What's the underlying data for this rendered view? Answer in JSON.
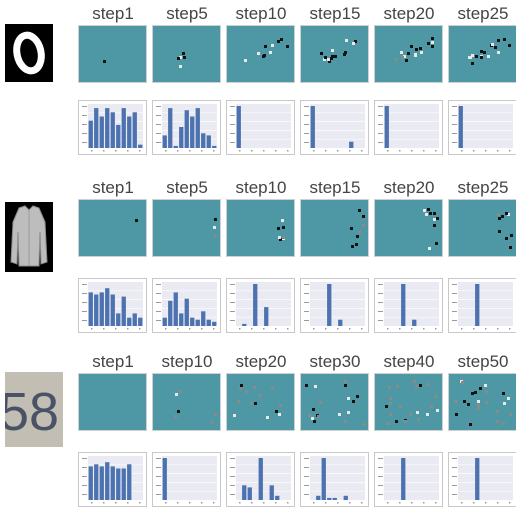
{
  "rows": [
    {
      "name": "mnist-zero",
      "steps": [
        "step1",
        "step5",
        "step10",
        "step15",
        "step20",
        "step25"
      ],
      "point_colors": {
        "dark": "#111111",
        "light": "#e8e8e8",
        "mid": "#8a8a8a"
      },
      "histograms": [
        [
          0.65,
          0.95,
          0.75,
          0.95,
          0.85,
          0.55,
          0.95,
          0.75,
          0.85,
          0.08
        ],
        [
          0.3,
          0.95,
          0.05,
          0.5,
          0.9,
          0.75,
          0.95,
          0.35,
          0.3,
          0.05
        ],
        [
          1.0,
          0,
          0,
          0,
          0,
          0,
          0,
          0,
          0,
          0
        ],
        [
          1.0,
          0,
          0,
          0,
          0,
          0,
          0,
          0.15,
          0,
          0
        ],
        [
          1.0,
          0,
          0,
          0,
          0,
          0,
          0,
          0,
          0,
          0
        ],
        [
          1.0,
          0,
          0,
          0,
          0,
          0,
          0,
          0,
          0,
          0
        ]
      ]
    },
    {
      "name": "fashion-shirt",
      "steps": [
        "step1",
        "step5",
        "step10",
        "step15",
        "step20",
        "step25"
      ],
      "point_colors": {
        "dark": "#111111",
        "light": "#e8e8e8",
        "mid": "#8a8a8a"
      },
      "histograms": [
        [
          0.8,
          0.75,
          0.8,
          0.9,
          0.75,
          0.3,
          0.7,
          0.2,
          0.3,
          0.2
        ],
        [
          0.2,
          0.6,
          0.8,
          0.3,
          0.65,
          0.2,
          0.15,
          0.35,
          0.15,
          0.1
        ],
        [
          0,
          0.05,
          0,
          1.0,
          0,
          0.45,
          0,
          0,
          0,
          0
        ],
        [
          0,
          0,
          0,
          1.0,
          0,
          0.15,
          0,
          0,
          0,
          0
        ],
        [
          0,
          0,
          0,
          1.0,
          0,
          0.15,
          0,
          0,
          0,
          0
        ],
        [
          0,
          0,
          0,
          1.0,
          0,
          0,
          0,
          0,
          0,
          0
        ]
      ]
    },
    {
      "name": "svhn-58",
      "steps": [
        "step1",
        "step10",
        "step20",
        "step30",
        "step40",
        "step50"
      ],
      "point_colors": {
        "dark": "#111111",
        "light": "#e8e8e8",
        "mid": "#8a8a8a"
      },
      "histograms": [
        [
          0.8,
          0.85,
          0.8,
          0.9,
          0.8,
          0.75,
          0.75,
          0.85,
          0,
          0
        ],
        [
          1.0,
          0,
          0,
          0,
          0,
          0,
          0,
          0,
          0,
          0
        ],
        [
          0,
          0.35,
          0.3,
          0,
          1.0,
          0,
          0.35,
          0.1,
          0,
          0
        ],
        [
          0,
          0.1,
          1.0,
          0.05,
          0.05,
          0,
          0.1,
          0,
          0,
          0
        ],
        [
          0,
          0,
          0,
          1.0,
          0,
          0,
          0,
          0,
          0,
          0
        ],
        [
          0,
          0,
          0,
          1.0,
          0,
          0,
          0,
          0,
          0,
          0
        ]
      ]
    }
  ]
}
